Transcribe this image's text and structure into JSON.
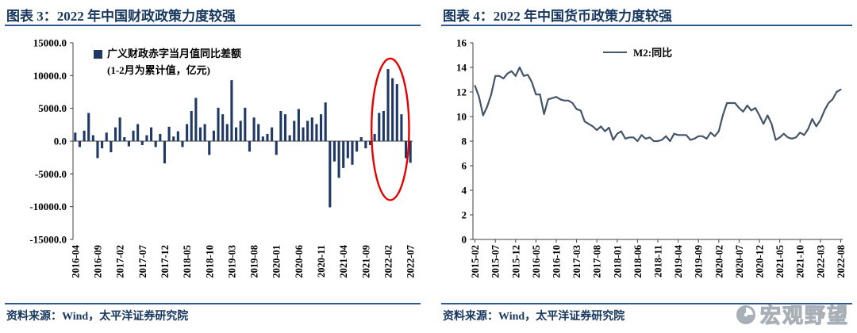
{
  "watermark": {
    "text": "宏观野望"
  },
  "colors": {
    "title_text": "#17375e",
    "rule_blue": "#2f5597",
    "bar_navy": "#1f3864",
    "line_slate": "#44546a",
    "ellipse_red": "#e60000",
    "axis_gray": "#404040",
    "watermark_gray": "#9aa2ab"
  },
  "chart_data": [
    {
      "type": "bar",
      "title": "图表 3：2022 年中国财政政策力度较强",
      "source": "资料来源：Wind，太平洋证券研究院",
      "legend": "广义财政赤字当月值同比差额",
      "legend_sub": "(1-2月为累计值，亿元)",
      "ylim": [
        -15000,
        15000
      ],
      "y_ticks": [
        {
          "v": 15000,
          "label": "15000.0"
        },
        {
          "v": 10000,
          "label": "10000.0"
        },
        {
          "v": 5000,
          "label": "5000.0"
        },
        {
          "v": 0,
          "label": "0.0"
        },
        {
          "v": -5000,
          "label": "-5000.0"
        },
        {
          "v": -10000,
          "label": "-10000.0"
        },
        {
          "v": -15000,
          "label": "-15000.0"
        }
      ],
      "x_tick_every": 5,
      "color": "#1f3864",
      "axis_color": "#404040",
      "zero_line": true,
      "bottom_axis": false,
      "annotation": {
        "shape": "ellipse",
        "x_index": 70.5,
        "y_value": 1800,
        "rx_index_span": 4.2,
        "ry_value_span": 10800,
        "color": "#e60000"
      },
      "categories": [
        "2016-04",
        "2016-05",
        "2016-06",
        "2016-07",
        "2016-08",
        "2016-09",
        "2016-10",
        "2016-11",
        "2016-12",
        "2017-01",
        "2017-02",
        "2017-03",
        "2017-04",
        "2017-05",
        "2017-06",
        "2017-07",
        "2017-08",
        "2017-09",
        "2017-10",
        "2017-11",
        "2017-12",
        "2018-01",
        "2018-02",
        "2018-03",
        "2018-04",
        "2018-05",
        "2018-06",
        "2018-07",
        "2018-08",
        "2018-09",
        "2018-10",
        "2018-11",
        "2018-12",
        "2019-01",
        "2019-02",
        "2019-03",
        "2019-04",
        "2019-05",
        "2019-06",
        "2019-07",
        "2019-08",
        "2019-09",
        "2019-10",
        "2019-11",
        "2019-12",
        "2020-01",
        "2020-02",
        "2020-03",
        "2020-04",
        "2020-05",
        "2020-06",
        "2020-07",
        "2020-08",
        "2020-09",
        "2020-10",
        "2020-11",
        "2020-12",
        "2021-01",
        "2021-02",
        "2021-03",
        "2021-04",
        "2021-05",
        "2021-06",
        "2021-07",
        "2021-08",
        "2021-09",
        "2021-10",
        "2021-11",
        "2021-12",
        "2022-01",
        "2022-02",
        "2022-03",
        "2022-04",
        "2022-05",
        "2022-06",
        "2022-07"
      ],
      "values": [
        1300,
        -900,
        1600,
        4300,
        900,
        -2600,
        -1100,
        1300,
        -1700,
        2100,
        3600,
        600,
        -800,
        1600,
        2600,
        -600,
        900,
        2100,
        -900,
        1100,
        -3400,
        2200,
        700,
        1500,
        -900,
        2600,
        4600,
        6600,
        2100,
        2600,
        -2100,
        1600,
        5100,
        4100,
        2600,
        9300,
        2100,
        3100,
        5100,
        -1600,
        3600,
        2600,
        700,
        1100,
        2100,
        -2100,
        4600,
        4100,
        900,
        3100,
        4900,
        2100,
        3100,
        3600,
        2600,
        4100,
        5900,
        -10100,
        -3100,
        -5600,
        -4100,
        -2600,
        -3600,
        -1600,
        600,
        -1100,
        -600,
        1100,
        4300,
        4600,
        11000,
        9600,
        8700,
        4100,
        -2600,
        -3300
      ]
    },
    {
      "type": "line",
      "title": "图表 4：2022 年中国货币政策力度较强",
      "source": "资料来源：Wind，太平洋证券研究院",
      "legend": "M2:同比",
      "ylim": [
        0,
        16
      ],
      "y_ticks": [
        {
          "v": 16,
          "label": "16"
        },
        {
          "v": 14,
          "label": "14"
        },
        {
          "v": 12,
          "label": "12"
        },
        {
          "v": 10,
          "label": "10"
        },
        {
          "v": 8,
          "label": "8"
        },
        {
          "v": 6,
          "label": "6"
        },
        {
          "v": 4,
          "label": "4"
        },
        {
          "v": 2,
          "label": "2"
        },
        {
          "v": 0,
          "label": "0"
        }
      ],
      "x_tick_every": 5,
      "color": "#44546a",
      "axis_color": "#404040",
      "zero_line": false,
      "bottom_axis": true,
      "categories": [
        "2015-02",
        "2015-03",
        "2015-04",
        "2015-05",
        "2015-06",
        "2015-07",
        "2015-08",
        "2015-09",
        "2015-10",
        "2015-11",
        "2015-12",
        "2016-01",
        "2016-02",
        "2016-03",
        "2016-04",
        "2016-05",
        "2016-06",
        "2016-07",
        "2016-08",
        "2016-09",
        "2016-10",
        "2016-11",
        "2016-12",
        "2017-01",
        "2017-02",
        "2017-03",
        "2017-04",
        "2017-05",
        "2017-06",
        "2017-07",
        "2017-08",
        "2017-09",
        "2017-10",
        "2017-11",
        "2017-12",
        "2018-01",
        "2018-02",
        "2018-03",
        "2018-04",
        "2018-05",
        "2018-06",
        "2018-07",
        "2018-08",
        "2018-09",
        "2018-10",
        "2018-11",
        "2018-12",
        "2019-01",
        "2019-02",
        "2019-03",
        "2019-04",
        "2019-05",
        "2019-06",
        "2019-07",
        "2019-08",
        "2019-09",
        "2019-10",
        "2019-11",
        "2019-12",
        "2020-01",
        "2020-02",
        "2020-03",
        "2020-04",
        "2020-05",
        "2020-06",
        "2020-07",
        "2020-08",
        "2020-09",
        "2020-10",
        "2020-11",
        "2020-12",
        "2021-01",
        "2021-02",
        "2021-03",
        "2021-04",
        "2021-05",
        "2021-06",
        "2021-07",
        "2021-08",
        "2021-09",
        "2021-10",
        "2021-11",
        "2021-12",
        "2022-01",
        "2022-02",
        "2022-03",
        "2022-04",
        "2022-05",
        "2022-06",
        "2022-07",
        "2022-08"
      ],
      "values": [
        12.5,
        11.6,
        10.1,
        10.8,
        11.8,
        13.3,
        13.3,
        13.1,
        13.5,
        13.7,
        13.3,
        14.0,
        13.3,
        13.4,
        12.8,
        11.8,
        11.8,
        10.2,
        11.4,
        11.5,
        11.6,
        11.4,
        11.3,
        11.3,
        11.1,
        10.6,
        10.5,
        9.6,
        9.4,
        9.2,
        8.9,
        9.2,
        8.8,
        9.1,
        8.1,
        8.6,
        8.8,
        8.2,
        8.3,
        8.3,
        8.0,
        8.5,
        8.2,
        8.3,
        8.0,
        8.0,
        8.1,
        8.4,
        8.0,
        8.6,
        8.5,
        8.5,
        8.5,
        8.1,
        8.2,
        8.4,
        8.4,
        8.2,
        8.7,
        8.4,
        8.8,
        10.1,
        11.1,
        11.1,
        11.1,
        10.7,
        10.4,
        10.9,
        10.5,
        10.7,
        10.1,
        9.4,
        10.1,
        9.4,
        8.1,
        8.3,
        8.6,
        8.3,
        8.2,
        8.3,
        8.7,
        8.5,
        9.0,
        9.8,
        9.2,
        9.7,
        10.5,
        11.1,
        11.4,
        12.0,
        12.2
      ]
    }
  ]
}
